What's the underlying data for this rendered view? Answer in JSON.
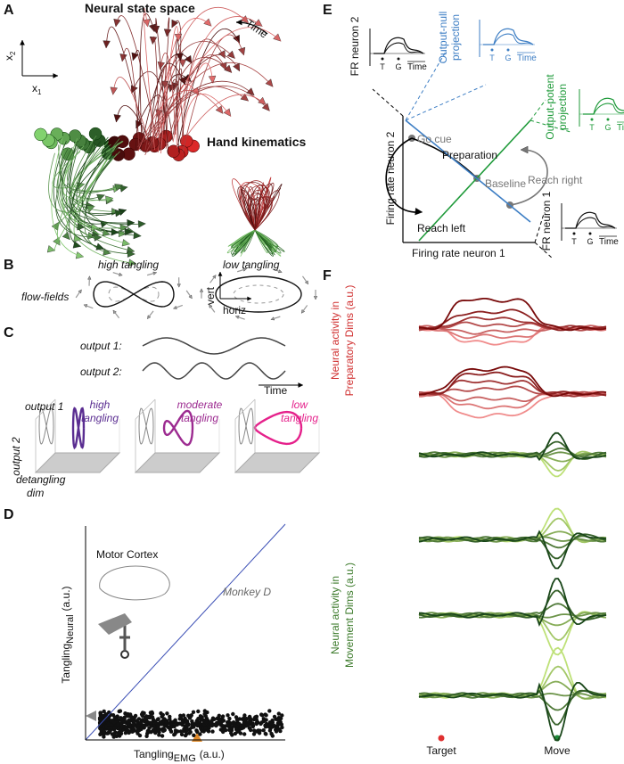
{
  "panel_a": {
    "label": "A",
    "title": "Neural state space",
    "time": "Time",
    "axis_y": {
      "symbol": "x",
      "sub": "2"
    },
    "axis_x": {
      "symbol": "x",
      "sub": "1"
    },
    "inset_title": "Hand kinematics",
    "inset_y": "vert",
    "inset_x": "horiz"
  },
  "panel_b": {
    "label": "B",
    "left_title": "high tangling",
    "right_title": "low tangling",
    "row_label": "flow-fields"
  },
  "panel_c": {
    "label": "C",
    "output1": "output 1:",
    "output2": "output 2:",
    "time": "Time",
    "axis_output1": "output 1",
    "axis_output2": "output 2",
    "axis_detangling": [
      "detangling",
      "dim"
    ],
    "cases": [
      {
        "lines": [
          "high",
          "tangling"
        ],
        "color": "#5a2d91"
      },
      {
        "lines": [
          "moderate",
          "tangling"
        ],
        "color": "#9c2a90"
      },
      {
        "lines": [
          "low",
          "tangling"
        ],
        "color": "#e5218b"
      }
    ]
  },
  "panel_d": {
    "label": "D",
    "region": "Motor Cortex",
    "monkey": "Monkey D",
    "y_label": {
      "main": "Tangling",
      "sub": "Neural",
      "unit": "(a.u.)"
    },
    "x_label": {
      "main": "Tangling",
      "sub": "EMG",
      "unit": "(a.u.)"
    }
  },
  "panel_e": {
    "label": "E",
    "y_axis": "Firing rate neuron 2",
    "x_axis": "Firing rate neuron 1",
    "go_cue": "Go cue",
    "preparation": "Preparation",
    "baseline": "Baseline",
    "reach_right": "Reach right",
    "reach_left": "Reach left",
    "fr2_inset": {
      "label": [
        "FR neuron 2"
      ],
      "t": "T",
      "g": "G",
      "time": "Time"
    },
    "null_inset": {
      "label": [
        "Output-null",
        "projection"
      ],
      "t": "T",
      "g": "G",
      "time": "Time"
    },
    "potent_inset": {
      "label": [
        "Output-potent",
        "projection"
      ],
      "t": "T",
      "g": "G",
      "time": "Time"
    },
    "fr1_inset": {
      "label": [
        "FR neuron 1"
      ],
      "t": "T",
      "g": "G",
      "time": "Time"
    }
  },
  "panel_f": {
    "label": "F",
    "prep_label": [
      "Neural activity in",
      "Preparatory Dims (a.u.)"
    ],
    "move_label": [
      "Neural activity in",
      "Movement Dims (a.u.)"
    ],
    "target": "Target",
    "move": "Move"
  }
}
